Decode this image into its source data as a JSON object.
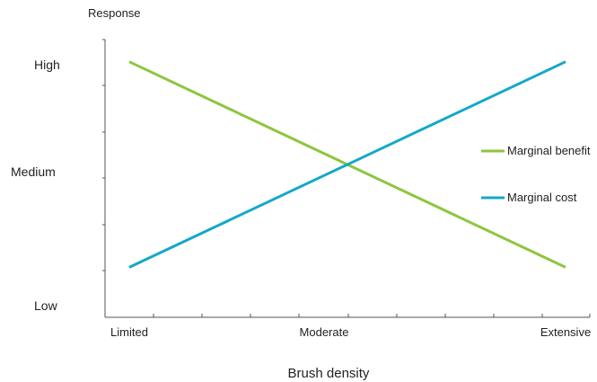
{
  "chart_data": {
    "type": "line",
    "title": "",
    "ylabel": "Response",
    "xlabel": "Brush density",
    "x_tick_labels": [
      "Limited",
      "Moderate",
      "Extensive"
    ],
    "y_tick_labels": [
      "Low",
      "Medium",
      "High"
    ],
    "x_range": [
      0,
      1
    ],
    "y_range": [
      0,
      1
    ],
    "grid": false,
    "legend_position": "right",
    "series": [
      {
        "name": "Marginal benefit",
        "color": "#8dc63f",
        "x": [
          0.05,
          0.95
        ],
        "y": [
          0.92,
          0.18
        ]
      },
      {
        "name": "Marginal cost",
        "color": "#13a8c9",
        "x": [
          0.05,
          0.95
        ],
        "y": [
          0.18,
          0.92
        ]
      }
    ]
  }
}
